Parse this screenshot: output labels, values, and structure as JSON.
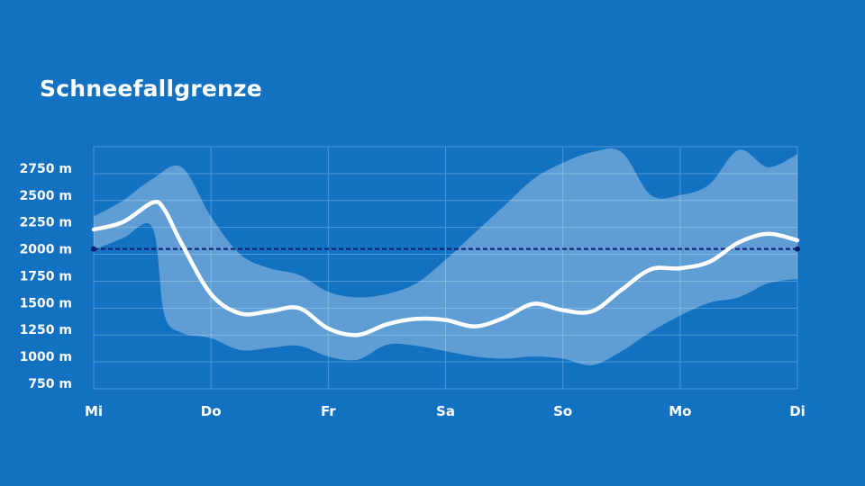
{
  "title": "Schneefallgrenze",
  "colors": {
    "background": "#1271c0",
    "band": "#ffffff",
    "line": "#ffffff",
    "reference_line": "#0b1f6e",
    "grid": "#4d98d8"
  },
  "chart_data": {
    "type": "line",
    "title": "Schneefallgrenze",
    "xlabel": "",
    "ylabel": "",
    "categories": [
      "Mi",
      "Do",
      "Fr",
      "Sa",
      "So",
      "Mo",
      "Di"
    ],
    "xlim": [
      0,
      6
    ],
    "ylim": [
      750,
      2750
    ],
    "ytick_values": [
      750,
      1000,
      1250,
      1500,
      1750,
      2000,
      2250,
      2500,
      2750
    ],
    "ytick_labels": [
      "750 m",
      "1000 m",
      "1250 m",
      "1500 m",
      "1750 m",
      "2000 m",
      "2250 m",
      "2500 m",
      "2750 m"
    ],
    "grid": true,
    "reference_value": 2000,
    "series": [
      {
        "role": "median",
        "x": [
          0,
          0.25,
          0.5,
          0.6,
          0.75,
          1.0,
          1.25,
          1.5,
          1.75,
          2.0,
          2.25,
          2.5,
          2.75,
          3.0,
          3.25,
          3.5,
          3.75,
          4.0,
          4.25,
          4.5,
          4.75,
          5.0,
          5.25,
          5.5,
          5.75,
          6.0
        ],
        "values": [
          2180,
          2250,
          2430,
          2370,
          2050,
          1580,
          1400,
          1420,
          1450,
          1260,
          1200,
          1300,
          1350,
          1340,
          1280,
          1360,
          1490,
          1430,
          1420,
          1620,
          1810,
          1820,
          1880,
          2060,
          2140,
          2080
        ]
      },
      {
        "role": "band_upper",
        "x": [
          0,
          0.25,
          0.5,
          0.75,
          1.0,
          1.25,
          1.5,
          1.75,
          2.0,
          2.25,
          2.5,
          2.75,
          3.0,
          3.25,
          3.5,
          3.75,
          4.0,
          4.25,
          4.5,
          4.75,
          5.0,
          5.25,
          5.5,
          5.75,
          6.0
        ],
        "values": [
          2300,
          2450,
          2650,
          2760,
          2300,
          1950,
          1820,
          1760,
          1600,
          1550,
          1580,
          1680,
          1900,
          2150,
          2400,
          2650,
          2800,
          2900,
          2900,
          2500,
          2500,
          2600,
          2920,
          2760,
          2880
        ]
      },
      {
        "role": "band_lower",
        "x": [
          0,
          0.25,
          0.5,
          0.6,
          0.75,
          1.0,
          1.25,
          1.5,
          1.75,
          2.0,
          2.25,
          2.5,
          2.75,
          3.0,
          3.25,
          3.5,
          3.75,
          4.0,
          4.25,
          4.5,
          4.75,
          5.0,
          5.25,
          5.5,
          5.75,
          6.0
        ],
        "values": [
          1990,
          2100,
          2200,
          1400,
          1220,
          1170,
          1060,
          1080,
          1100,
          1000,
          970,
          1110,
          1100,
          1050,
          1000,
          980,
          1000,
          980,
          920,
          1050,
          1230,
          1380,
          1500,
          1550,
          1680,
          1720
        ]
      }
    ]
  }
}
